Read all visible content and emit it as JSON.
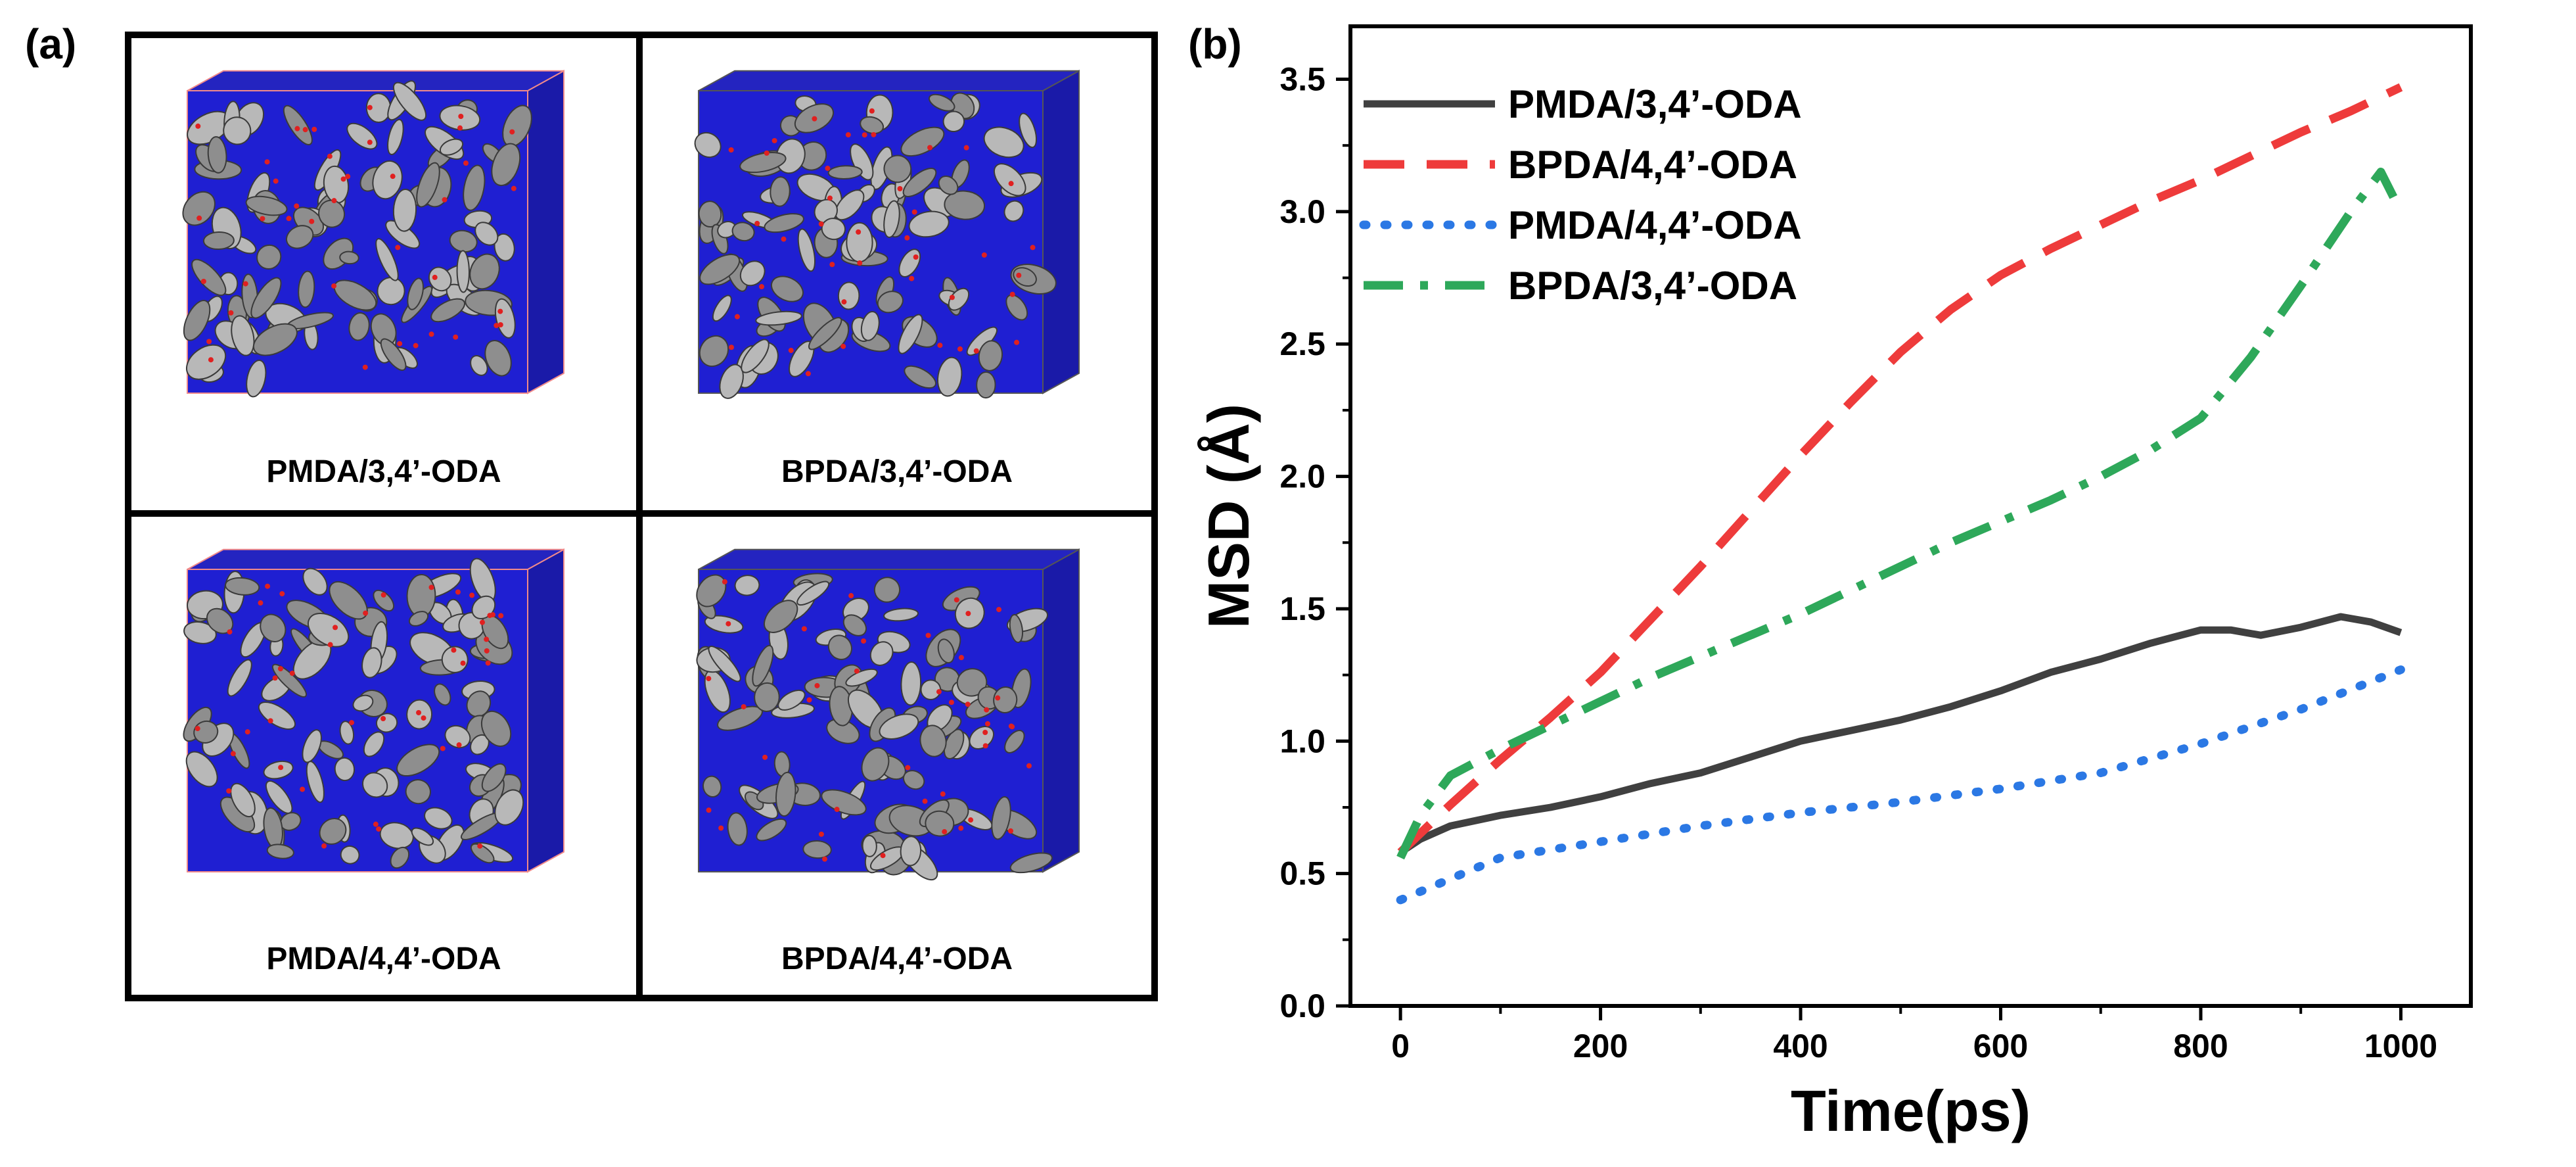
{
  "panel_a": {
    "label": "(a)",
    "cells": [
      {
        "label": "PMDA/3,4’-ODA"
      },
      {
        "label": "BPDA/3,4’-ODA"
      },
      {
        "label": "PMDA/4,4’-ODA"
      },
      {
        "label": "BPDA/4,4’-ODA"
      }
    ]
  },
  "panel_b": {
    "label": "(b)"
  },
  "chart_data": {
    "type": "line",
    "title": "",
    "xlabel": "Time(ps)",
    "ylabel": "MSD (Å)",
    "xlim": [
      -50,
      1070
    ],
    "ylim": [
      0,
      3.7
    ],
    "xticks": [
      "0",
      "200",
      "400",
      "600",
      "800",
      "1000"
    ],
    "yticks": [
      "0.0",
      "0.5",
      "1.0",
      "1.5",
      "2.0",
      "2.5",
      "3.0",
      "3.5"
    ],
    "legend_position": "top-left",
    "series": [
      {
        "name": "PMDA/3,4’-ODA",
        "color": "#404040",
        "style": "solid",
        "x": [
          0,
          20,
          50,
          100,
          150,
          200,
          250,
          300,
          350,
          400,
          450,
          500,
          550,
          600,
          650,
          700,
          750,
          800,
          830,
          860,
          900,
          940,
          970,
          1000
        ],
        "y": [
          0.58,
          0.63,
          0.68,
          0.72,
          0.75,
          0.79,
          0.84,
          0.88,
          0.94,
          1.0,
          1.04,
          1.08,
          1.13,
          1.19,
          1.26,
          1.31,
          1.37,
          1.42,
          1.42,
          1.4,
          1.43,
          1.47,
          1.45,
          1.41
        ]
      },
      {
        "name": "BPDA/4,4’-ODA",
        "color": "#ee3b3b",
        "style": "dash",
        "x": [
          0,
          50,
          100,
          150,
          200,
          250,
          300,
          350,
          400,
          450,
          500,
          550,
          600,
          650,
          700,
          750,
          800,
          850,
          900,
          950,
          1000
        ],
        "y": [
          0.58,
          0.76,
          0.93,
          1.09,
          1.26,
          1.46,
          1.66,
          1.87,
          2.08,
          2.28,
          2.47,
          2.63,
          2.76,
          2.86,
          2.95,
          3.04,
          3.12,
          3.21,
          3.3,
          3.38,
          3.47
        ]
      },
      {
        "name": "PMDA/4,4’-ODA",
        "color": "#2b78e4",
        "style": "dot",
        "x": [
          0,
          50,
          100,
          200,
          300,
          400,
          500,
          600,
          700,
          800,
          900,
          1000
        ],
        "y": [
          0.4,
          0.48,
          0.56,
          0.62,
          0.68,
          0.73,
          0.77,
          0.82,
          0.88,
          0.99,
          1.12,
          1.27
        ]
      },
      {
        "name": "BPDA/3,4’-ODA",
        "color": "#2ea85a",
        "style": "dashdot",
        "x": [
          0,
          20,
          50,
          100,
          150,
          200,
          250,
          300,
          350,
          400,
          450,
          500,
          550,
          600,
          650,
          700,
          750,
          800,
          850,
          900,
          950,
          980,
          1000
        ],
        "y": [
          0.56,
          0.72,
          0.87,
          0.97,
          1.06,
          1.15,
          1.24,
          1.32,
          1.4,
          1.48,
          1.57,
          1.66,
          1.75,
          1.83,
          1.91,
          2.0,
          2.1,
          2.22,
          2.45,
          2.72,
          3.0,
          3.15,
          3.0
        ]
      }
    ]
  }
}
